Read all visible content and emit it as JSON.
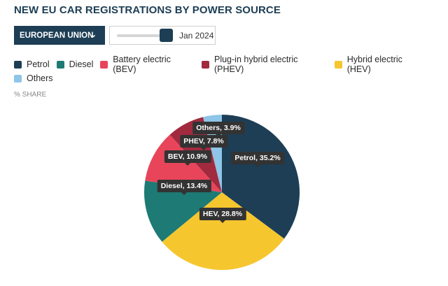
{
  "header": {
    "title": "NEW EU CAR REGISTRATIONS BY POWER SOURCE"
  },
  "controls": {
    "region": "EUROPEAN UNION",
    "date": "Jan 2024",
    "slider_position": 1.0
  },
  "unit_label": "% SHARE",
  "icons": {
    "dropdown": "chevron-down-icon"
  },
  "chart_data": {
    "type": "pie",
    "title": "NEW EU CAR REGISTRATIONS BY POWER SOURCE",
    "unit": "% SHARE",
    "legend_position": "top-left",
    "slices": [
      {
        "name": "Petrol",
        "value": 35.2,
        "color": "#1d3e55",
        "label": "Petrol, 35.2%"
      },
      {
        "name": "Hybrid electric (HEV)",
        "value": 28.8,
        "color": "#f6c62f",
        "label": "HEV, 28.8%"
      },
      {
        "name": "Diesel",
        "value": 13.4,
        "color": "#1d7a74",
        "label": "Diesel, 13.4%"
      },
      {
        "name": "Battery electric (BEV)",
        "value": 10.9,
        "color": "#e8455a",
        "label": "BEV, 10.9%"
      },
      {
        "name": "Plug-in hybrid electric (PHEV)",
        "value": 7.8,
        "color": "#a12a3f",
        "label": "PHEV, 7.8%"
      },
      {
        "name": "Others",
        "value": 3.9,
        "color": "#8ec5e8",
        "label": "Others, 3.9%"
      }
    ],
    "legend": [
      {
        "name": "Petrol",
        "color": "#1d3e55"
      },
      {
        "name": "Diesel",
        "color": "#1d7a74"
      },
      {
        "name": "Battery electric (BEV)",
        "color": "#e8455a"
      },
      {
        "name": "Plug-in hybrid electric (PHEV)",
        "color": "#a12a3f"
      },
      {
        "name": "Hybrid electric (HEV)",
        "color": "#f6c62f"
      },
      {
        "name": "Others",
        "color": "#8ec5e8"
      }
    ]
  }
}
